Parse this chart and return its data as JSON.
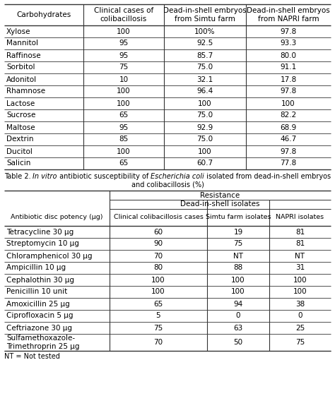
{
  "table1_headers": [
    "Carbohydrates",
    "Clinical cases of\ncolibacillosis",
    "Dead-in-shell embryos\nfrom Simtu farm",
    "Dead-in-shell embryos\nfrom NAPRI farm"
  ],
  "table1_rows": [
    [
      "Xylose",
      "100",
      "100%",
      "97.8"
    ],
    [
      "Mannitol",
      "95",
      "92.5",
      "93.3"
    ],
    [
      "Raffinose",
      "95",
      "85.7",
      "80.0"
    ],
    [
      "Sorbitol",
      "75",
      "75.0",
      "91.1"
    ],
    [
      "Adonitol",
      "10",
      "32.1",
      "17.8"
    ],
    [
      "Rhamnose",
      "100",
      "96.4",
      "97.8"
    ],
    [
      "Lactose",
      "100",
      "100",
      "100"
    ],
    [
      "Sucrose",
      "65",
      "75.0",
      "82.2"
    ],
    [
      "Maltose",
      "95",
      "92.9",
      "68.9"
    ],
    [
      "Dextrin",
      "85",
      "75.0",
      "46.7"
    ],
    [
      "Ducitol",
      "100",
      "100",
      "97.8"
    ],
    [
      "Salicin",
      "65",
      "60.7",
      "77.8"
    ]
  ],
  "table2_merge_header1": "Resistance",
  "table2_merge_header2": "Dead-in-shell isolates",
  "table2_headers": [
    "Antibiotic disc potency (μg)",
    "Clinical colibacillosis cases",
    "Simtu farm isolates",
    "NAPRI isolates"
  ],
  "table2_rows": [
    [
      "Tetracycline 30 μg",
      "60",
      "19",
      "81"
    ],
    [
      "Streptomycin 10 μg",
      "90",
      "75",
      "81"
    ],
    [
      "Chloramphenicol 30 μg",
      "70",
      "NT",
      "NT"
    ],
    [
      "Ampicillin 10 μg",
      "80",
      "88",
      "31"
    ],
    [
      "Cephalothin 30 μg",
      "100",
      "100",
      "100"
    ],
    [
      "Penicillin 10 unit",
      "100",
      "100",
      "100"
    ],
    [
      "Amoxicillin 25 μg",
      "65",
      "94",
      "38"
    ],
    [
      "Ciprofloxacin 5 μg",
      "5",
      "0",
      "0"
    ],
    [
      "Ceftriazone 30 μg",
      "75",
      "63",
      "25"
    ],
    [
      "Sulfamethoxazole-\nTrimethroprin 25 μg",
      "70",
      "50",
      "75"
    ]
  ],
  "table2_footnote": "NT = Not tested",
  "font_size": 7.5,
  "header_font_size": 7.5,
  "small_font_size": 6.8
}
